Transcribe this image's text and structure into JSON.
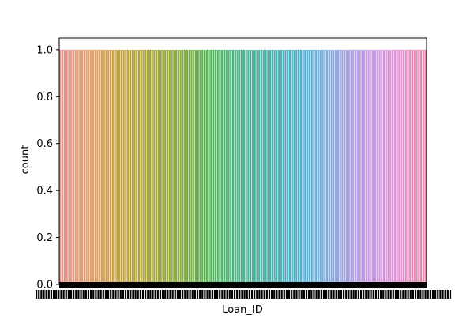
{
  "chart_data": {
    "type": "bar",
    "title": "",
    "xlabel": "Loan_ID",
    "ylabel": "count",
    "ylim": [
      0,
      1.05
    ],
    "yticks": [
      0.0,
      0.2,
      0.4,
      0.6,
      0.8,
      1.0
    ],
    "ytick_labels": [
      "0.0",
      "0.2",
      "0.4",
      "0.6",
      "0.8",
      "1.0"
    ],
    "n_categories": 168,
    "value_per_category": 1,
    "xtick_labels_note_visible": "overlapping, illegible Loan_ID tick labels",
    "grid": false,
    "legend": "none",
    "palette": [
      "#e8938e",
      "#e4a06a",
      "#bfa03b",
      "#a3a43a",
      "#86ad3e",
      "#4db35a",
      "#4fb393",
      "#4eb0b0",
      "#4fabd0",
      "#8fa9e0",
      "#c29be5",
      "#df8fd6",
      "#e68aa8"
    ]
  }
}
